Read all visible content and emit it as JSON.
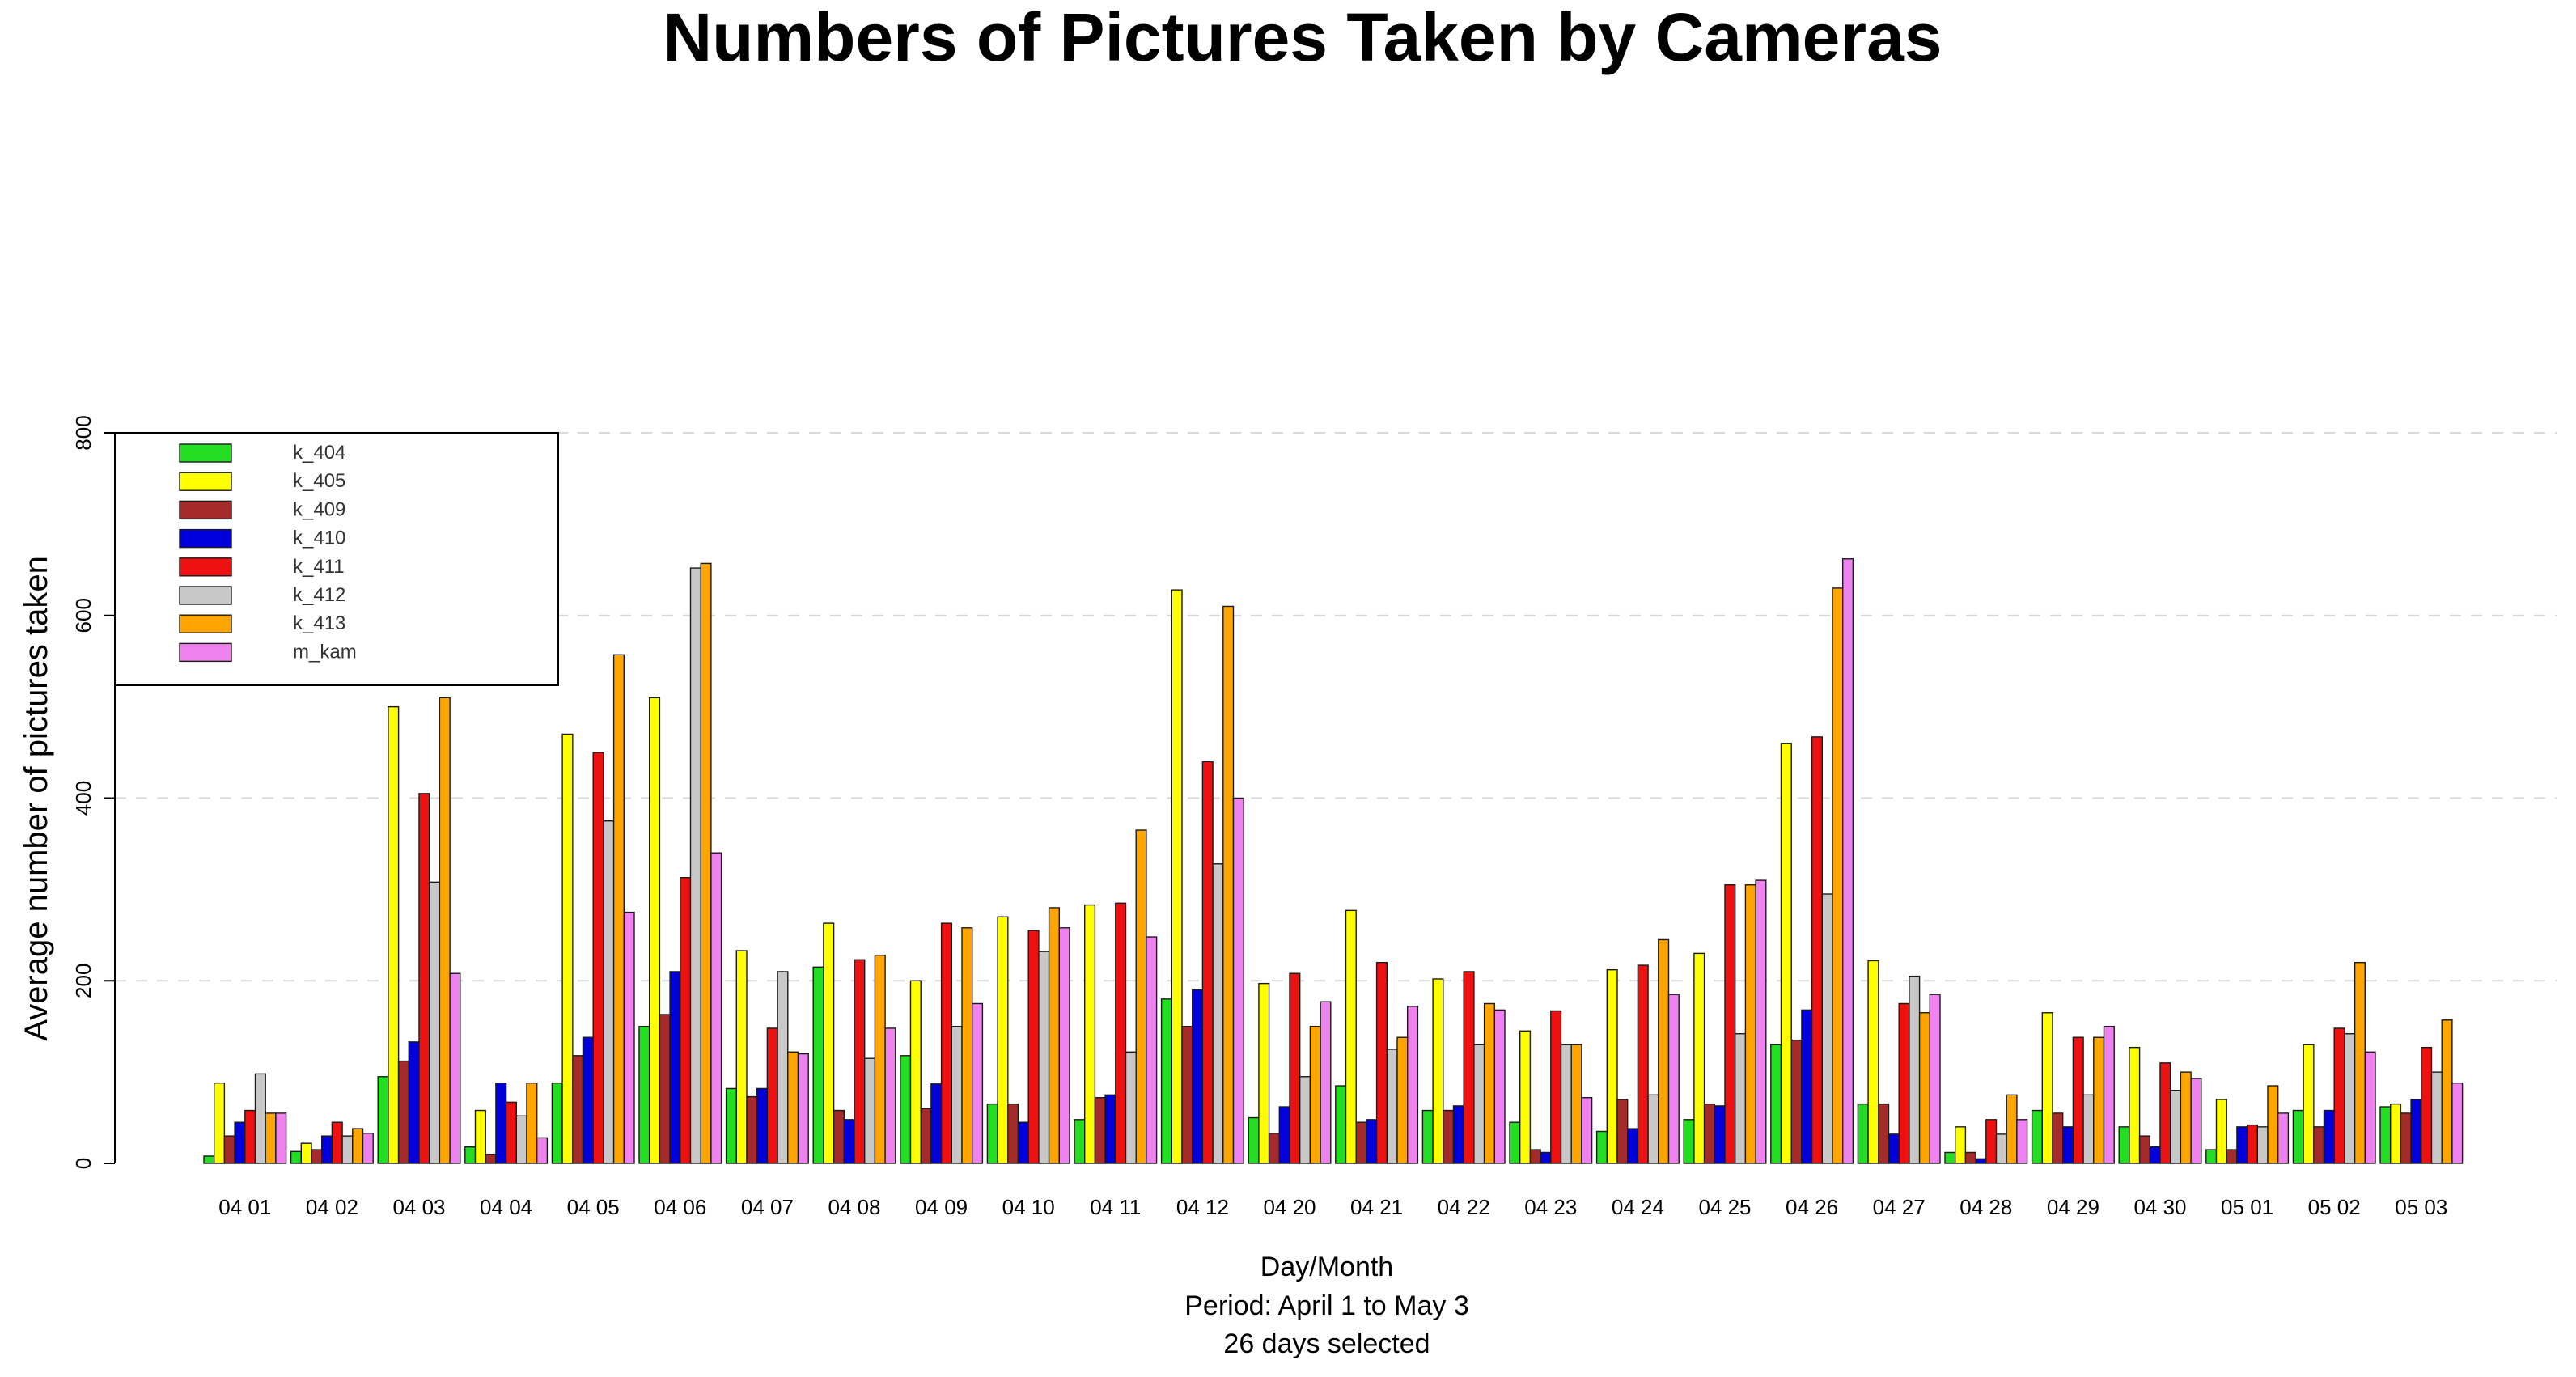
{
  "chart_data": {
    "type": "bar",
    "title": "Numbers of Pictures Taken by Cameras",
    "ylabel": "Average number of pictures taken",
    "xlabel_lines": [
      "Day/Month",
      "Period: April 1 to May 3",
      "26 days selected"
    ],
    "ylim": [
      0,
      800
    ],
    "yticks": [
      0,
      200,
      400,
      600,
      800
    ],
    "grid": true,
    "legend_position": "top-left",
    "categories": [
      "04 01",
      "04 02",
      "04 03",
      "04 04",
      "04 05",
      "04 06",
      "04 07",
      "04 08",
      "04 09",
      "04 10",
      "04 11",
      "04 12",
      "04 20",
      "04 21",
      "04 22",
      "04 23",
      "04 24",
      "04 25",
      "04 26",
      "04 27",
      "04 28",
      "04 29",
      "04 30",
      "05 01",
      "05 02",
      "05 03"
    ],
    "series": [
      {
        "name": "k_404",
        "color": "#22dd22",
        "values": [
          8,
          13,
          95,
          18,
          88,
          150,
          82,
          215,
          118,
          65,
          48,
          180,
          50,
          85,
          58,
          45,
          35,
          48,
          130,
          65,
          12,
          58,
          40,
          15,
          58,
          62
        ]
      },
      {
        "name": "k_405",
        "color": "#ffff00",
        "values": [
          88,
          22,
          500,
          58,
          470,
          510,
          233,
          263,
          200,
          270,
          283,
          628,
          197,
          277,
          202,
          145,
          212,
          230,
          460,
          222,
          40,
          165,
          127,
          70,
          130,
          65
        ]
      },
      {
        "name": "k_409",
        "color": "#a52a2a",
        "values": [
          30,
          15,
          112,
          10,
          118,
          163,
          73,
          58,
          60,
          65,
          72,
          150,
          33,
          45,
          58,
          15,
          70,
          65,
          135,
          65,
          12,
          55,
          30,
          15,
          40,
          55
        ]
      },
      {
        "name": "k_410",
        "color": "#0000dd",
        "values": [
          45,
          30,
          133,
          88,
          138,
          210,
          82,
          48,
          87,
          45,
          75,
          190,
          62,
          48,
          63,
          12,
          38,
          63,
          168,
          32,
          5,
          40,
          18,
          40,
          58,
          70
        ]
      },
      {
        "name": "k_411",
        "color": "#ee1111",
        "values": [
          58,
          45,
          405,
          67,
          450,
          313,
          148,
          223,
          263,
          255,
          285,
          440,
          208,
          220,
          210,
          167,
          217,
          305,
          467,
          175,
          48,
          138,
          110,
          42,
          148,
          127
        ]
      },
      {
        "name": "k_412",
        "color": "#c8c8c8",
        "values": [
          98,
          30,
          308,
          52,
          375,
          652,
          210,
          115,
          150,
          232,
          122,
          328,
          95,
          125,
          130,
          130,
          75,
          142,
          295,
          205,
          32,
          75,
          80,
          40,
          142,
          100
        ]
      },
      {
        "name": "k_413",
        "color": "#ffa500",
        "values": [
          55,
          38,
          510,
          88,
          557,
          657,
          122,
          228,
          258,
          280,
          365,
          610,
          150,
          138,
          175,
          130,
          245,
          305,
          630,
          165,
          75,
          138,
          100,
          85,
          220,
          157
        ]
      },
      {
        "name": "m_kam",
        "color": "#ee82ee",
        "values": [
          55,
          33,
          208,
          28,
          275,
          340,
          120,
          148,
          175,
          258,
          248,
          400,
          177,
          172,
          168,
          72,
          185,
          310,
          662,
          185,
          48,
          150,
          93,
          55,
          122,
          88
        ]
      }
    ]
  }
}
